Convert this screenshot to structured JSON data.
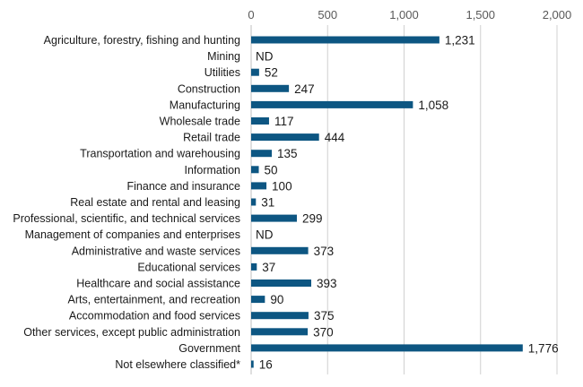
{
  "chart_data": {
    "type": "bar",
    "orientation": "horizontal",
    "title": "",
    "xlabel": "",
    "ylabel": "",
    "xlim": [
      0,
      2000
    ],
    "ticks": [
      0,
      500,
      1000,
      1500,
      2000
    ],
    "tick_labels": [
      "0",
      "500",
      "1,000",
      "1,500",
      "2,000"
    ],
    "grid": true,
    "bar_color": "#0d5682",
    "categories": [
      "Agriculture, forestry, fishing and hunting",
      "Mining",
      "Utilities",
      "Construction",
      "Manufacturing",
      "Wholesale trade",
      "Retail trade",
      "Transportation and warehousing",
      "Information",
      "Finance and insurance",
      "Real estate and rental and leasing",
      "Professional, scientific, and technical services",
      "Management of companies and enterprises",
      "Administrative and waste services",
      "Educational services",
      "Healthcare and social assistance",
      "Arts, entertainment, and recreation",
      "Accommodation and food services",
      "Other services, except public administration",
      "Government",
      "Not elsewhere classified*"
    ],
    "values": [
      1231,
      null,
      52,
      247,
      1058,
      117,
      444,
      135,
      50,
      100,
      31,
      299,
      null,
      373,
      37,
      393,
      90,
      375,
      370,
      1776,
      16
    ],
    "value_labels": [
      "1,231",
      "ND",
      "52",
      "247",
      "1,058",
      "117",
      "444",
      "135",
      "50",
      "100",
      "31",
      "299",
      "ND",
      "373",
      "37",
      "393",
      "90",
      "375",
      "370",
      "1,776",
      "16"
    ]
  }
}
